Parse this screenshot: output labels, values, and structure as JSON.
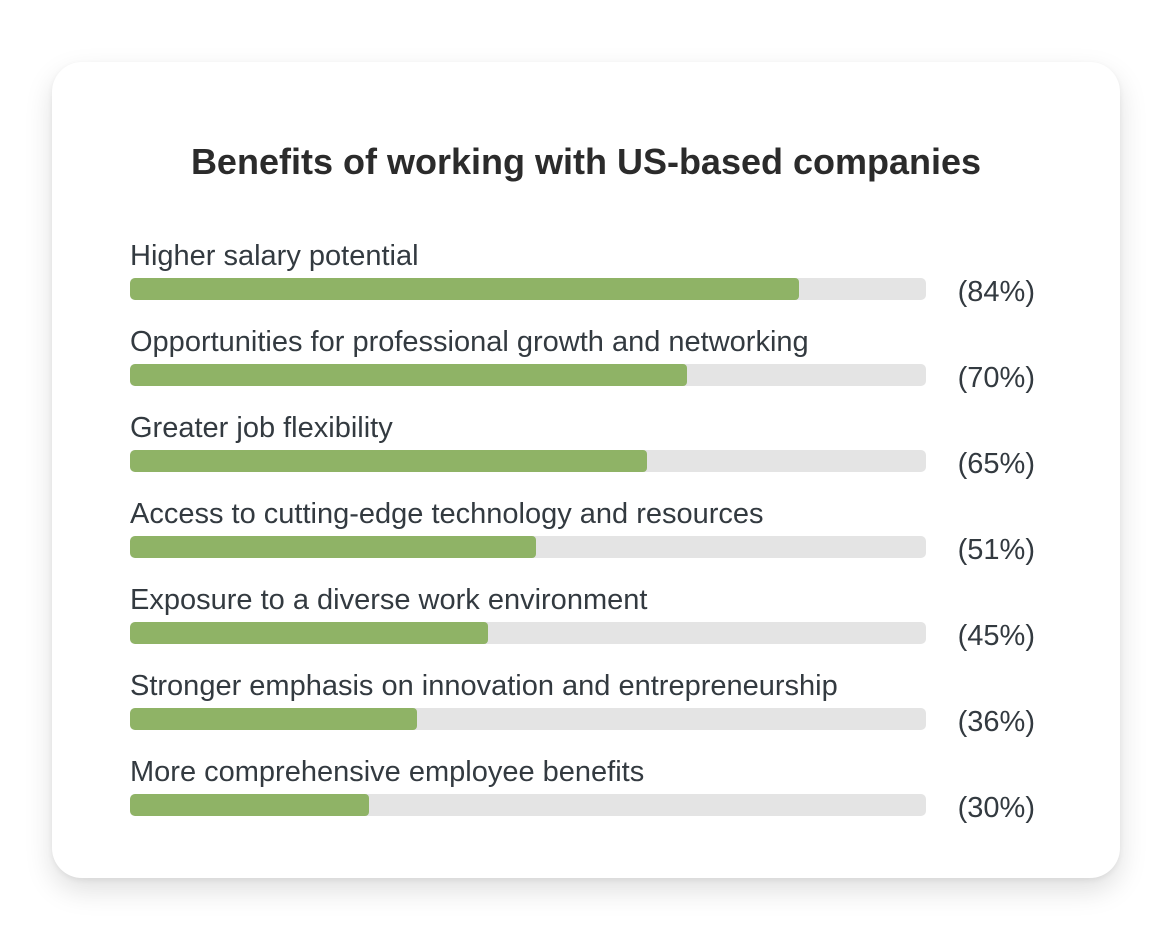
{
  "chart_data": {
    "type": "bar",
    "orientation": "horizontal",
    "title": "Benefits of working with US-based companies",
    "xlim": [
      0,
      100
    ],
    "grid": false,
    "colors": {
      "fill": "#8fb366",
      "track": "#e4e4e4"
    },
    "bars": [
      {
        "label": "Higher salary potential",
        "value": 84,
        "value_label": "(84%)"
      },
      {
        "label": "Opportunities for professional growth and networking",
        "value": 70,
        "value_label": "(70%)"
      },
      {
        "label": "Greater job flexibility",
        "value": 65,
        "value_label": "(65%)"
      },
      {
        "label": "Access to cutting-edge technology and resources",
        "value": 51,
        "value_label": "(51%)"
      },
      {
        "label": "Exposure to a diverse work environment",
        "value": 45,
        "value_label": "(45%)"
      },
      {
        "label": "Stronger emphasis on innovation and entrepreneurship",
        "value": 36,
        "value_label": "(36%)"
      },
      {
        "label": "More comprehensive employee benefits",
        "value": 30,
        "value_label": "(30%)"
      }
    ]
  }
}
